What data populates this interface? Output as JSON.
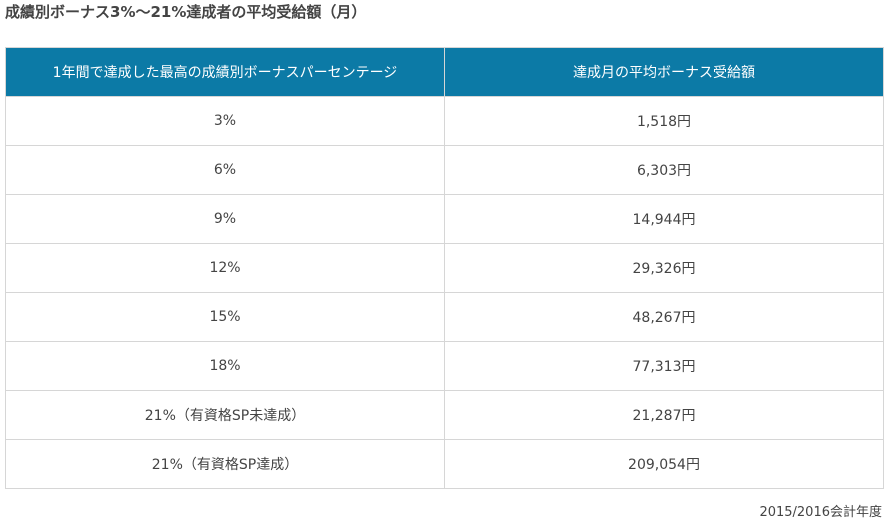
{
  "title": "成績別ボーナス3%〜21%達成者の平均受給額（月）",
  "table": {
    "headers": [
      "1年間で達成した最高の成績別ボーナスパーセンテージ",
      "達成月の平均ボーナス受給額"
    ],
    "rows": [
      [
        "3%",
        "1,518円"
      ],
      [
        "6%",
        "6,303円"
      ],
      [
        "9%",
        "14,944円"
      ],
      [
        "12%",
        "29,326円"
      ],
      [
        "15%",
        "48,267円"
      ],
      [
        "18%",
        "77,313円"
      ],
      [
        "21%（有資格SP未達成）",
        "21,287円"
      ],
      [
        "21%（有資格SP達成）",
        "209,054円"
      ]
    ]
  },
  "note": "2015/2016会計年度",
  "colors": {
    "header_bg": "#0c7aa6",
    "header_text": "#ffffff",
    "border": "#d6d6d6"
  }
}
